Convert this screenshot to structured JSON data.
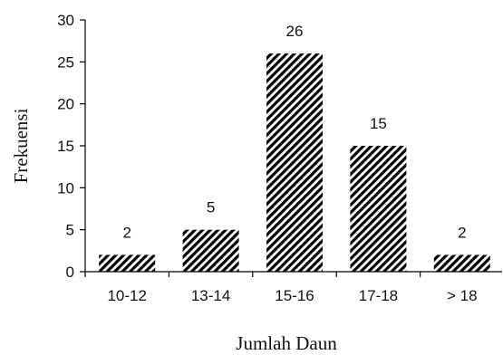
{
  "chart_data": {
    "type": "bar",
    "categories": [
      "10-12",
      "13-14",
      "15-16",
      "17-18",
      "> 18"
    ],
    "values": [
      2,
      5,
      26,
      15,
      2
    ],
    "data_labels": [
      "2",
      "5",
      "26",
      "15",
      "2"
    ],
    "y_ticks": [
      "0",
      "5",
      "10",
      "15",
      "20",
      "25",
      "30"
    ],
    "xlabel": "Jumlah Daun",
    "ylabel": "Frekuensi",
    "ylim": [
      0,
      30
    ],
    "grid": false,
    "legend": "none",
    "bar_pattern": "diagonal-hatch",
    "bar_color": "#000000",
    "axis_color": "#000000"
  }
}
